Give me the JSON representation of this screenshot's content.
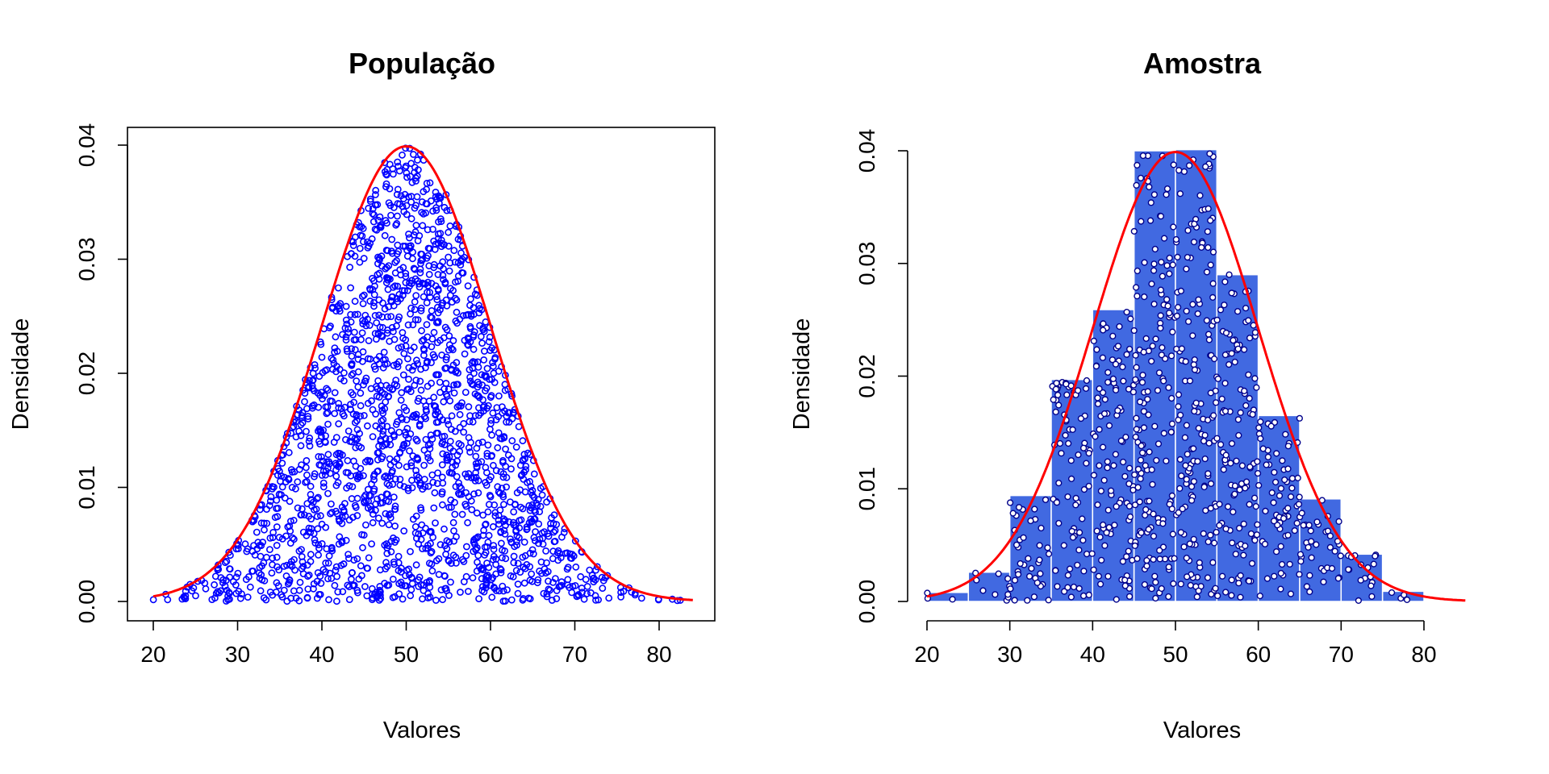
{
  "colors": {
    "points": "#0000ff",
    "curve": "#ff0000",
    "bars": "#4169e1",
    "bar_border": "#ffffff",
    "sample_point_fill": "#ffffff",
    "sample_point_stroke": "#00008b"
  },
  "chart_data": [
    {
      "type": "scatter",
      "title": "População",
      "xlabel": "Valores",
      "ylabel": "Densidade",
      "xlim": [
        20,
        84
      ],
      "ylim": [
        0,
        0.04
      ],
      "xticks": [
        "20",
        "30",
        "40",
        "50",
        "60",
        "70",
        "80"
      ],
      "yticks": [
        "0.00",
        "0.01",
        "0.02",
        "0.03",
        "0.04"
      ],
      "box": true,
      "points": {
        "description": "Each observation drawn at x = value, y = uniform jitter between 0 and the normal density at x",
        "n": 2000,
        "mean": 50,
        "sd": 10,
        "x_range": [
          20,
          84
        ]
      },
      "curve": {
        "name": "densidade normal",
        "mean": 50,
        "sd": 10,
        "x_range": [
          20,
          84
        ]
      }
    },
    {
      "type": "bar",
      "title": "Amostra",
      "xlabel": "Valores",
      "ylabel": "Densidade",
      "xlim": [
        20,
        85
      ],
      "ylim": [
        0,
        0.04
      ],
      "xticks": [
        "20",
        "30",
        "40",
        "50",
        "60",
        "70",
        "80"
      ],
      "yticks": [
        "0.00",
        "0.01",
        "0.02",
        "0.03",
        "0.04"
      ],
      "box": false,
      "bins": [
        {
          "x0": 20,
          "x1": 25,
          "density": 0.0008
        },
        {
          "x0": 25,
          "x1": 30,
          "density": 0.0026
        },
        {
          "x0": 30,
          "x1": 35,
          "density": 0.0094
        },
        {
          "x0": 35,
          "x1": 40,
          "density": 0.0197
        },
        {
          "x0": 40,
          "x1": 45,
          "density": 0.0259
        },
        {
          "x0": 45,
          "x1": 50,
          "density": 0.04
        },
        {
          "x0": 50,
          "x1": 55,
          "density": 0.0401
        },
        {
          "x0": 55,
          "x1": 60,
          "density": 0.029
        },
        {
          "x0": 60,
          "x1": 65,
          "density": 0.0165
        },
        {
          "x0": 65,
          "x1": 70,
          "density": 0.0091
        },
        {
          "x0": 70,
          "x1": 75,
          "density": 0.0042
        },
        {
          "x0": 75,
          "x1": 80,
          "density": 0.0009
        }
      ],
      "points": {
        "description": "Each sample observation drawn inside its bar at x = value, y = uniform jitter between 0 and the bar density",
        "n": 800
      },
      "curve": {
        "name": "densidade normal",
        "mean": 50,
        "sd": 10,
        "x_range": [
          20,
          85
        ]
      }
    }
  ]
}
